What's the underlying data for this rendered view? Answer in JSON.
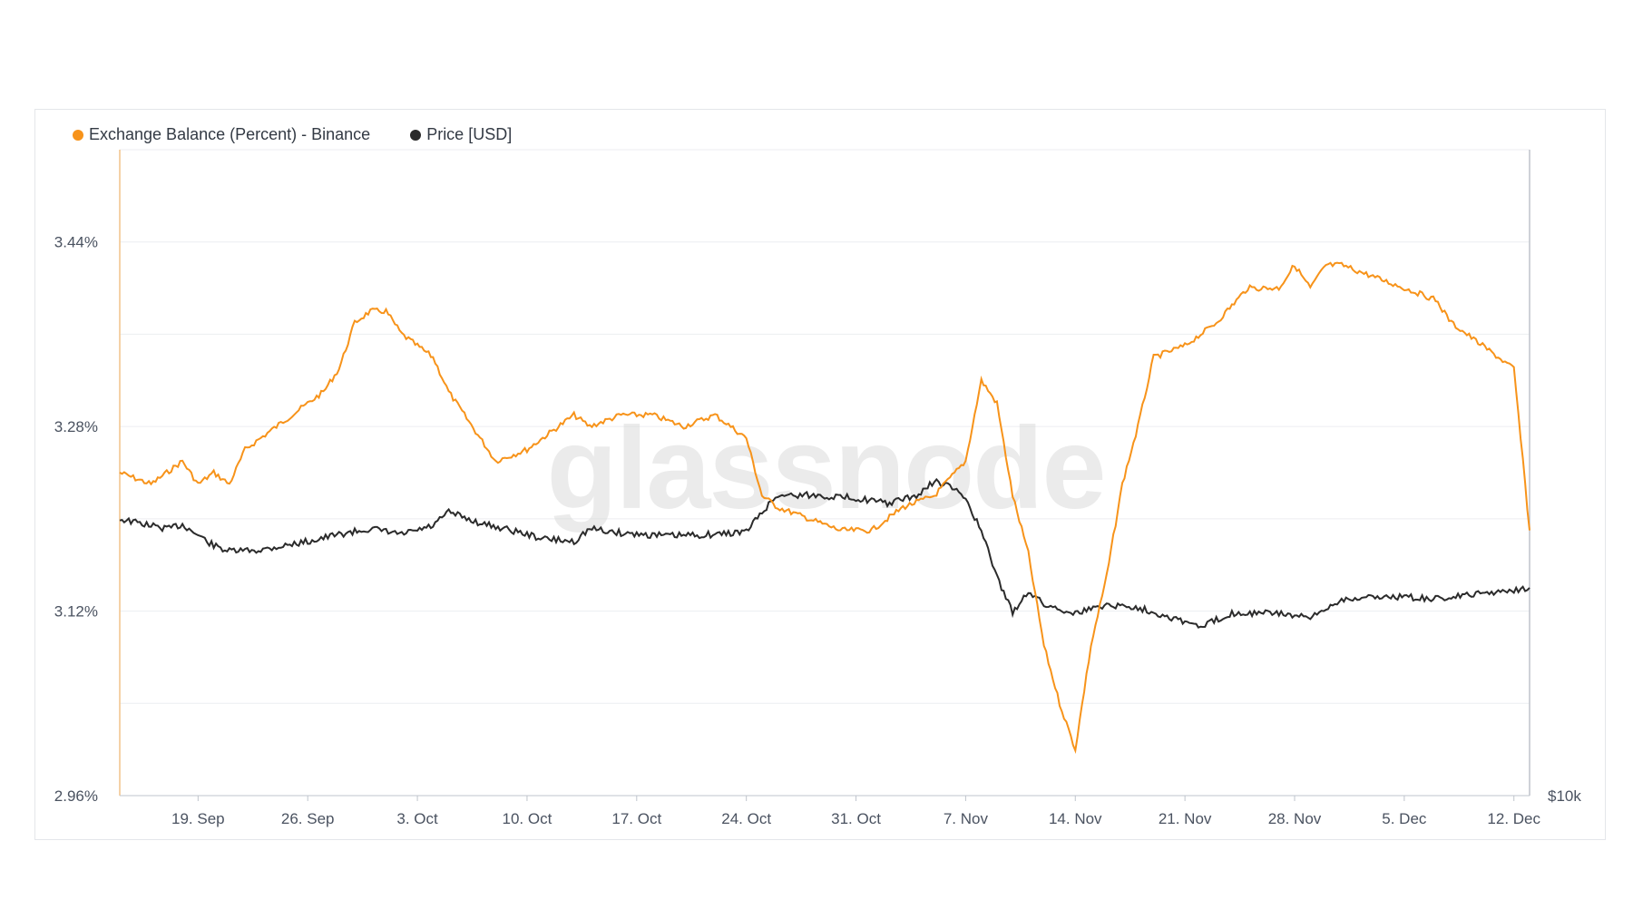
{
  "watermark": "glassnode",
  "legend": {
    "series1": "Exchange Balance (Percent) - Binance",
    "series2": "Price [USD]"
  },
  "colors": {
    "balance": "#f7931a",
    "price": "#2b2b2b",
    "grid": "#eceef1",
    "axis": "#bfc4cc"
  },
  "chart_data": {
    "type": "line",
    "title": "",
    "xlabel": "",
    "ylabel": "",
    "grid": true,
    "legend_position": "top-left",
    "x_ticks": [
      "19. Sep",
      "26. Sep",
      "3. Oct",
      "10. Oct",
      "17. Oct",
      "24. Oct",
      "31. Oct",
      "7. Nov",
      "14. Nov",
      "21. Nov",
      "28. Nov",
      "5. Dec",
      "12. Dec"
    ],
    "y_left_ticks": [
      "3.44%",
      "3.28%",
      "3.12%",
      "2.96%"
    ],
    "y_left_tick_values": [
      3.44,
      3.28,
      3.12,
      2.96
    ],
    "y_left_range": [
      2.96,
      3.52
    ],
    "y_right_ticks": [
      "$10k"
    ],
    "x_day_range": [
      "2022-09-14",
      "2022-12-13"
    ],
    "series": [
      {
        "name": "Exchange Balance (Percent) - Binance",
        "axis": "left",
        "x": [
          "2022-09-14",
          "2022-09-16",
          "2022-09-18",
          "2022-09-19",
          "2022-09-20",
          "2022-09-21",
          "2022-09-22",
          "2022-09-24",
          "2022-09-26",
          "2022-09-27",
          "2022-09-28",
          "2022-09-29",
          "2022-09-30",
          "2022-10-01",
          "2022-10-02",
          "2022-10-04",
          "2022-10-05",
          "2022-10-06",
          "2022-10-08",
          "2022-10-10",
          "2022-10-12",
          "2022-10-13",
          "2022-10-14",
          "2022-10-16",
          "2022-10-18",
          "2022-10-20",
          "2022-10-22",
          "2022-10-24",
          "2022-10-25",
          "2022-10-26",
          "2022-10-28",
          "2022-10-30",
          "2022-11-01",
          "2022-11-03",
          "2022-11-05",
          "2022-11-07",
          "2022-11-08",
          "2022-11-09",
          "2022-11-10",
          "2022-11-11",
          "2022-11-12",
          "2022-11-13",
          "2022-11-14",
          "2022-11-15",
          "2022-11-16",
          "2022-11-17",
          "2022-11-18",
          "2022-11-19",
          "2022-11-21",
          "2022-11-23",
          "2022-11-25",
          "2022-11-27",
          "2022-11-28",
          "2022-11-29",
          "2022-11-30",
          "2022-12-01",
          "2022-12-03",
          "2022-12-05",
          "2022-12-07",
          "2022-12-08",
          "2022-12-10",
          "2022-12-12",
          "2022-12-13"
        ],
        "values": [
          3.24,
          3.23,
          3.25,
          3.23,
          3.24,
          3.23,
          3.26,
          3.28,
          3.3,
          3.31,
          3.33,
          3.37,
          3.38,
          3.38,
          3.36,
          3.34,
          3.31,
          3.29,
          3.25,
          3.26,
          3.28,
          3.29,
          3.28,
          3.29,
          3.29,
          3.28,
          3.29,
          3.27,
          3.22,
          3.21,
          3.2,
          3.19,
          3.19,
          3.21,
          3.22,
          3.25,
          3.32,
          3.3,
          3.22,
          3.17,
          3.09,
          3.04,
          3.0,
          3.09,
          3.15,
          3.23,
          3.28,
          3.34,
          3.35,
          3.37,
          3.4,
          3.4,
          3.42,
          3.4,
          3.42,
          3.42,
          3.41,
          3.4,
          3.39,
          3.37,
          3.35,
          3.33,
          3.19
        ]
      },
      {
        "name": "Price [USD]",
        "axis": "right",
        "x": [
          "2022-09-14",
          "2022-09-17",
          "2022-09-18",
          "2022-09-20",
          "2022-09-21",
          "2022-09-23",
          "2022-09-26",
          "2022-09-28",
          "2022-09-30",
          "2022-10-02",
          "2022-10-04",
          "2022-10-05",
          "2022-10-07",
          "2022-10-09",
          "2022-10-11",
          "2022-10-13",
          "2022-10-14",
          "2022-10-16",
          "2022-10-19",
          "2022-10-22",
          "2022-10-24",
          "2022-10-25",
          "2022-10-26",
          "2022-10-28",
          "2022-10-31",
          "2022-11-02",
          "2022-11-04",
          "2022-11-05",
          "2022-11-06",
          "2022-11-07",
          "2022-11-08",
          "2022-11-09",
          "2022-11-10",
          "2022-11-11",
          "2022-11-12",
          "2022-11-14",
          "2022-11-16",
          "2022-11-18",
          "2022-11-21",
          "2022-11-22",
          "2022-11-24",
          "2022-11-27",
          "2022-11-29",
          "2022-12-01",
          "2022-12-04",
          "2022-12-07",
          "2022-12-10",
          "2022-12-13"
        ],
        "values": [
          19850,
          19500,
          19650,
          18900,
          18700,
          18750,
          19050,
          19300,
          19500,
          19300,
          19600,
          20100,
          19700,
          19450,
          19150,
          19050,
          19500,
          19350,
          19250,
          19300,
          19400,
          20100,
          20700,
          20700,
          20600,
          20400,
          20700,
          21200,
          21000,
          20600,
          19400,
          17800,
          16500,
          17300,
          16800,
          16500,
          16800,
          16700,
          16200,
          16000,
          16500,
          16500,
          16300,
          17000,
          17100,
          17000,
          17200,
          17400
        ]
      }
    ]
  }
}
